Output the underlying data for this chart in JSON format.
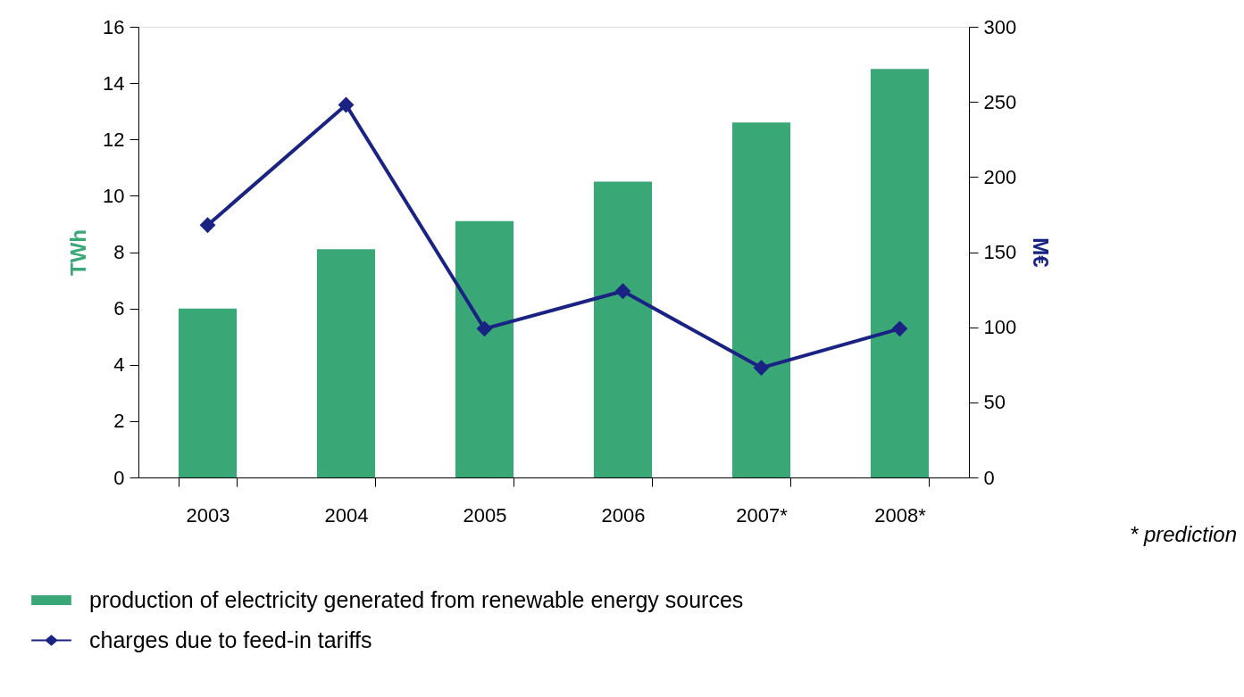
{
  "chart_data": {
    "type": "bar",
    "categories": [
      "2003",
      "2004",
      "2005",
      "2006",
      "2007*",
      "2008*"
    ],
    "ylabel": "TWh",
    "y2label": "M€",
    "ylim": [
      0,
      16
    ],
    "yticks": [
      0,
      2,
      4,
      6,
      8,
      10,
      12,
      14,
      16
    ],
    "y2lim": [
      0,
      300
    ],
    "y2ticks": [
      0,
      50,
      100,
      150,
      200,
      250,
      300
    ],
    "grid": false,
    "legend": "bottom",
    "marker": "diamond",
    "annotations": [
      "* prediction"
    ],
    "series": [
      {
        "name": "production of electricity generated from renewable energy sources",
        "color": "#3aa876",
        "values": [
          6.0,
          8.1,
          9.1,
          10.5,
          12.6,
          14.5
        ]
      },
      {
        "name": "charges due to feed-in tariffs",
        "type": "line",
        "axis": "y2",
        "color": "#1a2383",
        "values": [
          168,
          248,
          99,
          124,
          73,
          99
        ]
      }
    ]
  }
}
